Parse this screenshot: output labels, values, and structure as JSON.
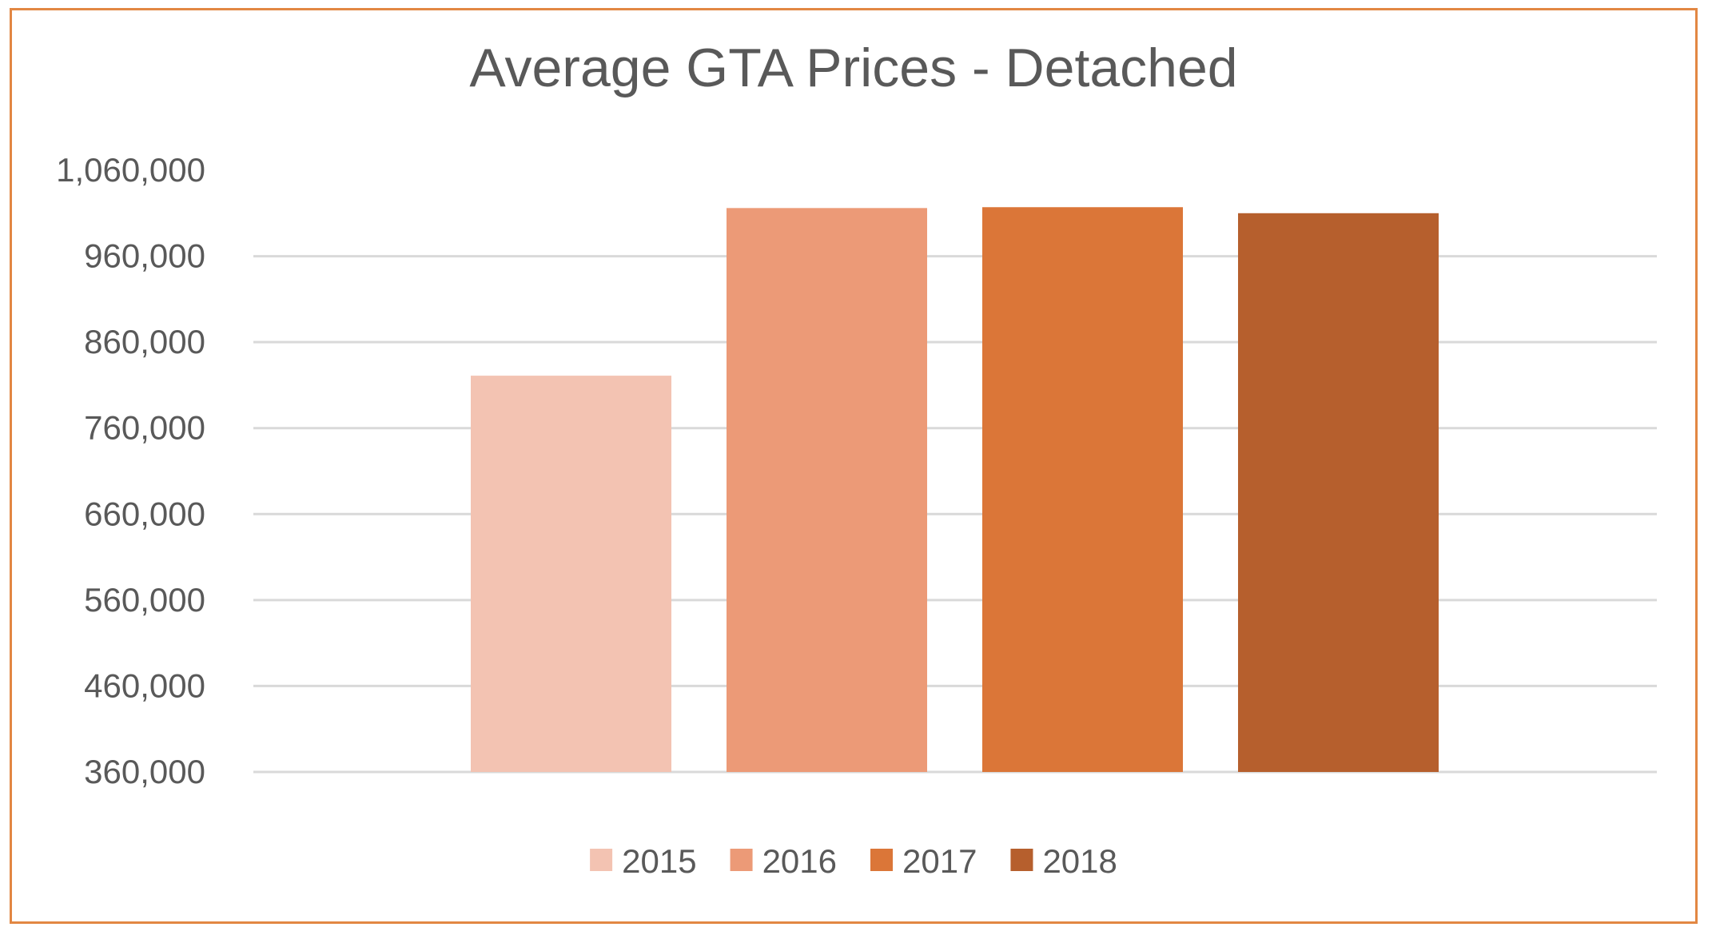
{
  "chart_data": {
    "type": "bar",
    "title": "Average GTA Prices - Detached",
    "xlabel": "",
    "ylabel": "",
    "ylim": [
      360000,
      1060000
    ],
    "yticks": [
      360000,
      460000,
      560000,
      660000,
      760000,
      860000,
      960000,
      1060000
    ],
    "ytick_labels": [
      "360,000",
      "460,000",
      "560,000",
      "660,000",
      "760,000",
      "860,000",
      "960,000",
      "1,060,000"
    ],
    "grid": true,
    "legend_position": "bottom",
    "series": [
      {
        "name": "2015",
        "values": [
          821000
        ],
        "color": "#f3c3b2"
      },
      {
        "name": "2016",
        "values": [
          1016000
        ],
        "color": "#ec9a77"
      },
      {
        "name": "2017",
        "values": [
          1017000
        ],
        "color": "#db7638"
      },
      {
        "name": "2018",
        "values": [
          1010000
        ],
        "color": "#b65f2d"
      }
    ]
  },
  "frame": {
    "border_color": "#e28743"
  }
}
